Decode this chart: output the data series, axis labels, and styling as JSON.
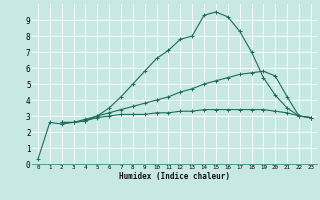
{
  "xlabel": "Humidex (Indice chaleur)",
  "background_color": "#c8e8e4",
  "grid_color": "#ffffff",
  "line_color": "#1e6b5a",
  "xlim": [
    -0.5,
    23.5
  ],
  "ylim": [
    0,
    10
  ],
  "line1_x": [
    0,
    1,
    2,
    3,
    4,
    5,
    6,
    7,
    8,
    9,
    10,
    11,
    12,
    13,
    14,
    15,
    16,
    17,
    18,
    19,
    20,
    21,
    22,
    23
  ],
  "line1_y": [
    0.3,
    2.6,
    2.5,
    2.6,
    2.7,
    3.0,
    3.5,
    4.2,
    5.0,
    5.8,
    6.6,
    7.1,
    7.8,
    8.0,
    9.3,
    9.5,
    9.2,
    8.3,
    7.0,
    5.4,
    4.3,
    3.5,
    3.0,
    2.9
  ],
  "line2_x": [
    2,
    3,
    4,
    5,
    6,
    7,
    8,
    9,
    10,
    11,
    12,
    13,
    14,
    15,
    16,
    17,
    18,
    19,
    20,
    21,
    22,
    23
  ],
  "line2_y": [
    2.6,
    2.6,
    2.8,
    3.0,
    3.2,
    3.4,
    3.6,
    3.8,
    4.0,
    4.2,
    4.5,
    4.7,
    5.0,
    5.2,
    5.4,
    5.6,
    5.7,
    5.8,
    5.5,
    4.2,
    3.0,
    2.9
  ],
  "line3_x": [
    2,
    3,
    4,
    5,
    6,
    7,
    8,
    9,
    10,
    11,
    12,
    13,
    14,
    15,
    16,
    17,
    18,
    19,
    20,
    21,
    22,
    23
  ],
  "line3_y": [
    2.6,
    2.6,
    2.7,
    2.9,
    3.0,
    3.1,
    3.1,
    3.1,
    3.2,
    3.2,
    3.3,
    3.3,
    3.4,
    3.4,
    3.4,
    3.4,
    3.4,
    3.4,
    3.3,
    3.2,
    3.0,
    2.9
  ],
  "xtick_labels": [
    "0",
    "1",
    "2",
    "3",
    "4",
    "5",
    "6",
    "7",
    "8",
    "9",
    "10",
    "11",
    "12",
    "13",
    "14",
    "15",
    "16",
    "17",
    "18",
    "19",
    "20",
    "21",
    "22",
    "23"
  ],
  "ytick_labels": [
    "0",
    "1",
    "2",
    "3",
    "4",
    "5",
    "6",
    "7",
    "8",
    "9"
  ]
}
